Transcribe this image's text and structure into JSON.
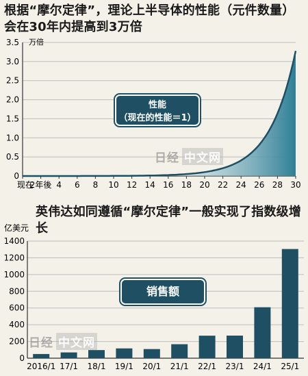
{
  "titles": {
    "top": "根据“摩尔定律”，理论上半导体的性能（元件数量）会在30年内提高到3万倍",
    "bottom": "英伟达如同遵循“摩尔定律”一般实现了指数级增长"
  },
  "badges": {
    "top_line1": "性能",
    "top_line2": "（现在的性能＝1）",
    "bottom": "销售额"
  },
  "watermark": {
    "logo": "日经",
    "text": "中文网"
  },
  "colors": {
    "accent": "#1e4f63",
    "area_dark": "#2f7f96",
    "bars": "#1e4f63"
  },
  "chart_data": [
    {
      "type": "area",
      "unit_label": "万倍",
      "x": [
        0,
        2,
        4,
        6,
        8,
        10,
        12,
        14,
        16,
        18,
        20,
        22,
        24,
        26,
        28,
        30
      ],
      "x_tick_labels": [
        "现在",
        "2年後",
        "4",
        "6",
        "8",
        "10",
        "12",
        "14",
        "16",
        "18",
        "20",
        "22",
        "24",
        "26",
        "28",
        "30"
      ],
      "y": [
        0.0001,
        0.0002,
        0.0004,
        0.0008,
        0.0016,
        0.0032,
        0.0064,
        0.013,
        0.026,
        0.051,
        0.1,
        0.2,
        0.41,
        0.82,
        1.64,
        3.28
      ],
      "y_ticks": [
        "0",
        "0.5",
        "1.0",
        "1.5",
        "2.0",
        "2.5",
        "3.0",
        "3.5"
      ],
      "ylim": [
        0,
        3.5
      ],
      "xlim": [
        0,
        30
      ],
      "grid": true
    },
    {
      "type": "bar",
      "unit_label": "亿美元",
      "categories": [
        "2016/1",
        "17/1",
        "18/1",
        "19/1",
        "20/1",
        "21/1",
        "22/1",
        "23/1",
        "24/1",
        "25/1"
      ],
      "values": [
        50,
        69,
        97,
        117,
        109,
        167,
        269,
        270,
        609,
        1305
      ],
      "y_ticks": [
        "0",
        "200",
        "400",
        "600",
        "800",
        "1000",
        "1200",
        "1400"
      ],
      "ylim": [
        0,
        1400
      ],
      "grid": true
    }
  ]
}
